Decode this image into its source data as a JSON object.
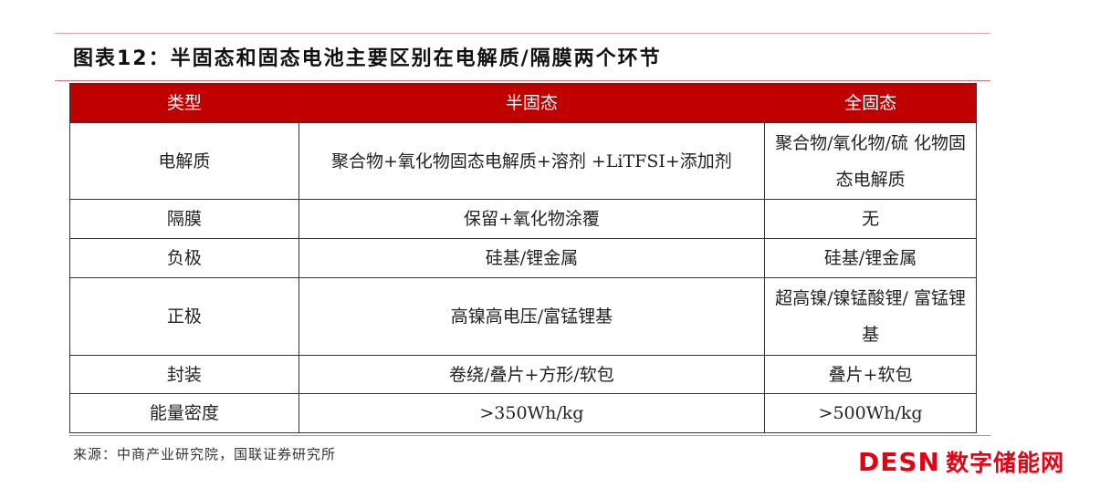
{
  "title": "图表12：半固态和固态电池主要区别在电解质/隔膜两个环节",
  "table": {
    "headers": [
      "类型",
      "半固态",
      "全固态"
    ],
    "rows": [
      [
        "电解质",
        "聚合物+氧化物固态电解质+溶剂 +LiTFSI+添加剂",
        "聚合物/氧化物/硫 化物固态电解质"
      ],
      [
        "隔膜",
        "保留+氧化物涂覆",
        "无"
      ],
      [
        "负极",
        "硅基/锂金属",
        "硅基/锂金属"
      ],
      [
        "正极",
        "高镍高电压/富锰锂基",
        "超高镍/镍锰酸锂/ 富锰锂基"
      ],
      [
        "封装",
        "卷绕/叠片+方形/软包",
        "叠片+软包"
      ],
      [
        "能量密度",
        ">350Wh/kg",
        ">500Wh/kg"
      ]
    ]
  },
  "source": "来源：中商产业研究院，国联证券研究所",
  "logo": {
    "latin": "DESN",
    "cn": "数字储能网"
  },
  "colors": {
    "header_bg": "#c00000",
    "logo": "#e60012"
  }
}
